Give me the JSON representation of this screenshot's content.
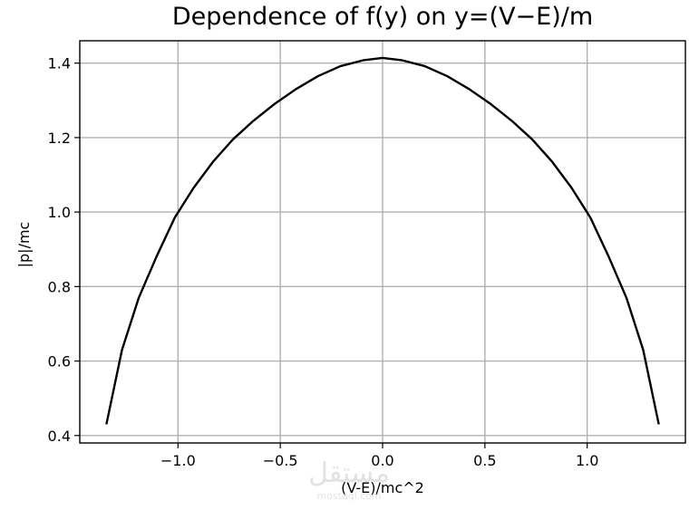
{
  "chart_data": {
    "type": "line",
    "title": "Dependence of f(y) on y=(V−E)/m",
    "xlabel": "(V-E)/mc^2",
    "ylabel": "|p|/mc",
    "xlim": [
      -1.48,
      1.48
    ],
    "ylim": [
      0.38,
      1.46
    ],
    "xticks": [
      -1.0,
      -0.5,
      0.0,
      0.5,
      1.0
    ],
    "xtick_labels": [
      "−1.0",
      "−0.5",
      "0.0",
      "0.5",
      "1.0"
    ],
    "yticks": [
      0.4,
      0.6,
      0.8,
      1.0,
      1.2,
      1.4
    ],
    "ytick_labels": [
      "0.4",
      "0.6",
      "0.8",
      "1.0",
      "1.2",
      "1.4"
    ],
    "grid": true,
    "legend": "none",
    "series": [
      {
        "color": "#000000",
        "x": [
          -1.35,
          -1.2737,
          -1.1916,
          -1.1053,
          -1.0158,
          -0.9237,
          -0.8289,
          -0.7316,
          -0.6316,
          -0.5289,
          -0.4237,
          -0.3158,
          -0.2053,
          -0.0921,
          0.0,
          0.0921,
          0.2053,
          0.3158,
          0.4237,
          0.5289,
          0.6316,
          0.7316,
          0.8289,
          0.9237,
          1.0158,
          1.1053,
          1.1916,
          1.2737,
          1.35
        ],
        "y": [
          0.43,
          0.63,
          0.77,
          0.88,
          0.985,
          1.065,
          1.135,
          1.195,
          1.245,
          1.29,
          1.33,
          1.365,
          1.392,
          1.408,
          1.414,
          1.408,
          1.392,
          1.365,
          1.33,
          1.29,
          1.245,
          1.195,
          1.135,
          1.065,
          0.985,
          0.88,
          0.77,
          0.63,
          0.43
        ]
      }
    ]
  },
  "watermark": {
    "text": "مستقل",
    "subtext": "mostaql.com"
  }
}
